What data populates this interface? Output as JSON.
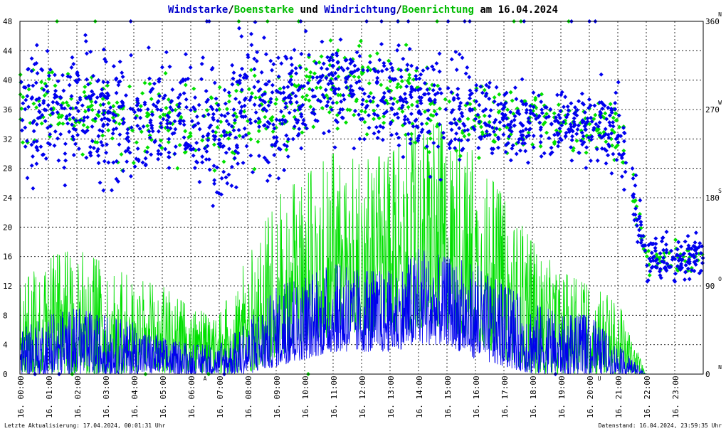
{
  "colors": {
    "wind": "#0000ee",
    "gust": "#00e000",
    "text": "#000000",
    "grid": "#000000",
    "marker": "#cc0000",
    "background": "#ffffff"
  },
  "title": {
    "parts": [
      {
        "text": "Windstarke",
        "color": "#0000cc"
      },
      {
        "text": "/",
        "color": "#000000"
      },
      {
        "text": "Boenstarke",
        "color": "#00bb00"
      },
      {
        "text": " und ",
        "color": "#000000"
      },
      {
        "text": "Windrichtung",
        "color": "#0000cc"
      },
      {
        "text": "/",
        "color": "#000000"
      },
      {
        "text": "Boenrichtung",
        "color": "#00bb00"
      },
      {
        "text": " am 16.04.2024",
        "color": "#000000"
      }
    ]
  },
  "footer": {
    "left": "Letzte Aktualisierung: 17.04.2024, 00:01:31 Uhr",
    "right": "Datenstand: 16.04.2024, 23:59:35 Uhr"
  },
  "chart_data": {
    "type": "line",
    "x_labels": [
      "16. 00:00",
      "16. 01:00",
      "16. 02:00",
      "16. 03:00",
      "16. 04:00",
      "16. 05:00",
      "16. 06:00",
      "16. 07:00",
      "16. 08:00",
      "16. 09:00",
      "16. 10:00",
      "16. 11:00",
      "16. 12:00",
      "16. 13:00",
      "16. 14:00",
      "16. 15:00",
      "16. 16:00",
      "16. 17:00",
      "16. 18:00",
      "16. 19:00",
      "16. 20:00",
      "16. 21:00",
      "16. 22:00",
      "16. 23:00"
    ],
    "xlim_hours": [
      0,
      24
    ],
    "left_axis": {
      "ylim": [
        0,
        48
      ],
      "ticks": [
        "0",
        "4",
        "8",
        "12",
        "16",
        "20",
        "24",
        "28",
        "32",
        "36",
        "40",
        "44",
        "48"
      ]
    },
    "right_axis": {
      "ylim": [
        0,
        360
      ],
      "ticks": [
        {
          "value": 0,
          "label": "0",
          "dir": "N"
        },
        {
          "value": 90,
          "label": "90",
          "dir": "O"
        },
        {
          "value": 180,
          "label": "180",
          "dir": "S"
        },
        {
          "value": 270,
          "label": "270",
          "dir": "W"
        },
        {
          "value": 360,
          "label": "360",
          "dir": "N"
        }
      ]
    },
    "grid": true,
    "sunrise": {
      "hour": 6.5,
      "label": "A"
    },
    "sunset": {
      "hour": 20.35,
      "label": "U"
    },
    "profile_hours": [
      0,
      1,
      2,
      3,
      4,
      5,
      6,
      7,
      8,
      9,
      10,
      11,
      12,
      13,
      14,
      15,
      16,
      17,
      18,
      19,
      20,
      21,
      22,
      23,
      24
    ],
    "series": [
      {
        "name": "Windstarke",
        "kind": "line",
        "axis": "left",
        "envelope_max": [
          6,
          8,
          9,
          8,
          7,
          5,
          4,
          4,
          7,
          12,
          13,
          15,
          14,
          14,
          17,
          16,
          15,
          12,
          10,
          8,
          8,
          4,
          0,
          0,
          0
        ],
        "envelope_min": [
          0,
          0,
          0,
          0,
          0,
          0,
          0,
          0,
          0,
          1,
          2,
          3,
          3,
          3,
          4,
          4,
          2,
          1,
          0,
          0,
          0,
          0,
          0,
          0,
          0
        ]
      },
      {
        "name": "Boenstarke",
        "kind": "line",
        "axis": "left",
        "envelope_max": [
          12,
          16,
          17,
          15,
          13,
          12,
          9,
          8,
          16,
          24,
          27,
          30,
          29,
          30,
          34,
          34,
          30,
          24,
          18,
          14,
          12,
          10,
          0,
          0,
          0
        ],
        "envelope_min": [
          0,
          0,
          0,
          0,
          0,
          0,
          0,
          0,
          0,
          2,
          4,
          5,
          5,
          5,
          6,
          6,
          4,
          2,
          0,
          0,
          0,
          0,
          0,
          0,
          0
        ]
      },
      {
        "name": "Windrichtung",
        "kind": "scatter",
        "axis": "right",
        "center_deg": [
          270,
          270,
          270,
          262,
          255,
          268,
          258,
          240,
          280,
          270,
          285,
          295,
          290,
          282,
          278,
          265,
          268,
          255,
          260,
          258,
          250,
          255,
          120,
          118,
          120
        ],
        "spread_deg": [
          45,
          45,
          45,
          45,
          45,
          45,
          45,
          50,
          45,
          45,
          40,
          35,
          35,
          35,
          40,
          40,
          35,
          30,
          30,
          25,
          25,
          30,
          20,
          15,
          15
        ]
      },
      {
        "name": "Boenrichtung",
        "kind": "scatter",
        "axis": "right",
        "center_deg": [
          270,
          272,
          270,
          262,
          255,
          268,
          258,
          240,
          280,
          270,
          285,
          295,
          290,
          282,
          278,
          265,
          268,
          255,
          260,
          258,
          250,
          255,
          120,
          118,
          120
        ],
        "spread_deg": [
          35,
          35,
          35,
          35,
          35,
          35,
          35,
          40,
          35,
          35,
          30,
          28,
          28,
          28,
          30,
          30,
          28,
          25,
          25,
          20,
          20,
          25,
          15,
          12,
          12
        ]
      }
    ]
  }
}
